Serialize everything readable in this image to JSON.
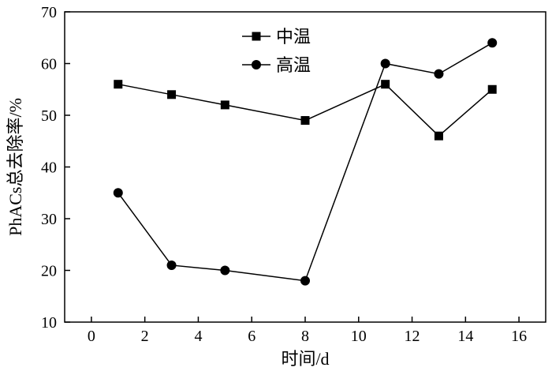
{
  "chart_data": {
    "type": "line",
    "title": "",
    "xlabel": "时间/d",
    "ylabel": "PhACs总去除率/%",
    "xlim": [
      -1,
      17
    ],
    "ylim": [
      10,
      70
    ],
    "xticks": [
      0,
      2,
      4,
      6,
      8,
      10,
      12,
      14,
      16
    ],
    "yticks": [
      10,
      20,
      30,
      40,
      50,
      60,
      70
    ],
    "xtick_labels": [
      "0",
      "2",
      "4",
      "6",
      "8",
      "10",
      "12",
      "14",
      "16"
    ],
    "ytick_labels": [
      "10",
      "20",
      "30",
      "40",
      "50",
      "60",
      "70"
    ],
    "grid": false,
    "legend_position": "top-center",
    "series": [
      {
        "name": "中温",
        "marker": "square",
        "color": "#000000",
        "x": [
          1,
          3,
          5,
          8,
          11,
          13,
          15
        ],
        "y": [
          56,
          54,
          52,
          49,
          56,
          46,
          55
        ]
      },
      {
        "name": "高温",
        "marker": "circle",
        "color": "#000000",
        "x": [
          1,
          3,
          5,
          8,
          11,
          13,
          15
        ],
        "y": [
          35,
          21,
          20,
          18,
          60,
          58,
          64
        ]
      }
    ]
  }
}
